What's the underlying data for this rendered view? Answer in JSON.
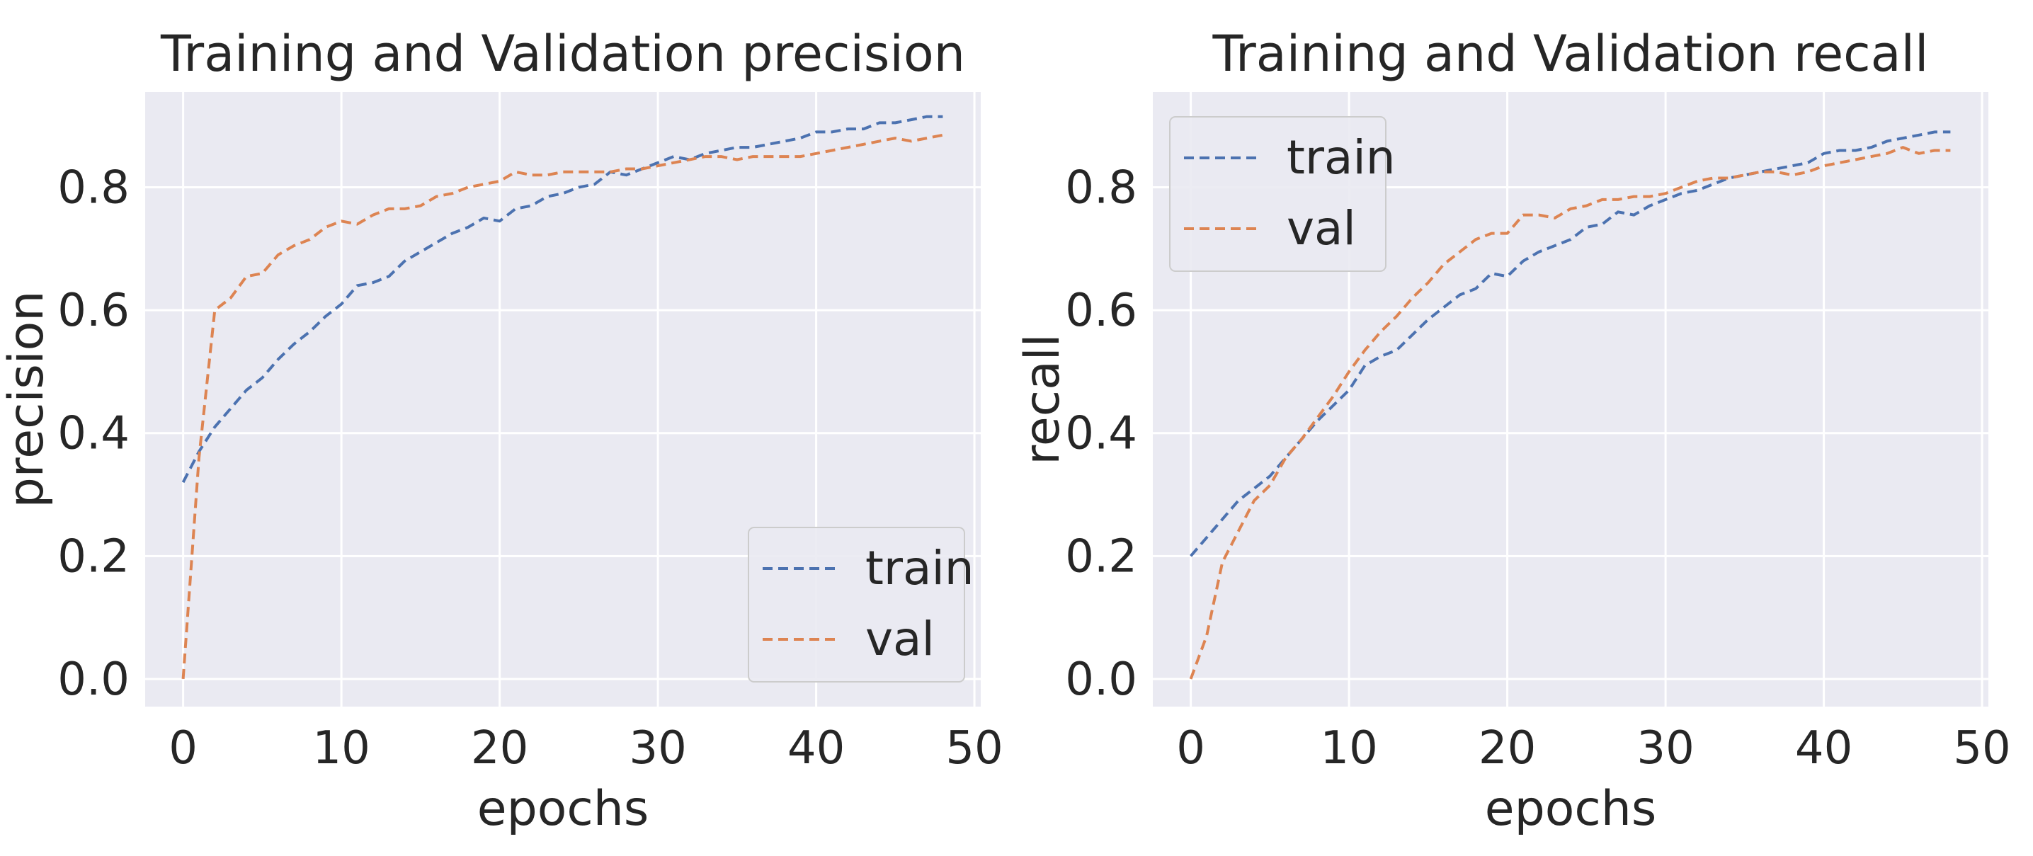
{
  "chart_data": [
    {
      "type": "line",
      "title": "Training and Validation precision",
      "xlabel": "epochs",
      "ylabel": "precision",
      "xlim": [
        -2.4,
        50.4
      ],
      "ylim": [
        -0.045,
        0.955
      ],
      "xticks": [
        "0",
        "10",
        "20",
        "30",
        "40",
        "50"
      ],
      "yticks": [
        "0.0",
        "0.2",
        "0.4",
        "0.6",
        "0.8"
      ],
      "grid": true,
      "legend": "lower right",
      "line_style": "dashed",
      "x": [
        0,
        1,
        2,
        3,
        4,
        5,
        6,
        7,
        8,
        9,
        10,
        11,
        12,
        13,
        14,
        15,
        16,
        17,
        18,
        19,
        20,
        21,
        22,
        23,
        24,
        25,
        26,
        27,
        28,
        29,
        30,
        31,
        32,
        33,
        34,
        35,
        36,
        37,
        38,
        39,
        40,
        41,
        42,
        43,
        44,
        45,
        46,
        47,
        48
      ],
      "series": [
        {
          "name": "train",
          "color": "#4c72b0",
          "values": [
            0.32,
            0.37,
            0.41,
            0.44,
            0.47,
            0.49,
            0.52,
            0.545,
            0.565,
            0.59,
            0.61,
            0.64,
            0.645,
            0.655,
            0.68,
            0.695,
            0.71,
            0.725,
            0.735,
            0.75,
            0.745,
            0.765,
            0.77,
            0.785,
            0.79,
            0.8,
            0.805,
            0.825,
            0.82,
            0.83,
            0.84,
            0.85,
            0.845,
            0.855,
            0.86,
            0.865,
            0.865,
            0.87,
            0.875,
            0.88,
            0.89,
            0.89,
            0.895,
            0.895,
            0.905,
            0.905,
            0.91,
            0.915,
            0.915
          ]
        },
        {
          "name": "val",
          "color": "#dd8452",
          "values": [
            0.0,
            0.36,
            0.6,
            0.62,
            0.655,
            0.66,
            0.69,
            0.705,
            0.715,
            0.735,
            0.745,
            0.74,
            0.755,
            0.765,
            0.765,
            0.77,
            0.785,
            0.79,
            0.8,
            0.805,
            0.81,
            0.825,
            0.82,
            0.82,
            0.825,
            0.825,
            0.825,
            0.825,
            0.83,
            0.83,
            0.835,
            0.84,
            0.845,
            0.85,
            0.85,
            0.845,
            0.85,
            0.85,
            0.85,
            0.85,
            0.855,
            0.86,
            0.865,
            0.87,
            0.875,
            0.88,
            0.875,
            0.88,
            0.885
          ]
        }
      ]
    },
    {
      "type": "line",
      "title": "Training and Validation recall",
      "xlabel": "epochs",
      "ylabel": "recall",
      "xlim": [
        -2.4,
        50.4
      ],
      "ylim": [
        -0.045,
        0.955
      ],
      "xticks": [
        "0",
        "10",
        "20",
        "30",
        "40",
        "50"
      ],
      "yticks": [
        "0.0",
        "0.2",
        "0.4",
        "0.6",
        "0.8"
      ],
      "grid": true,
      "legend": "upper left",
      "line_style": "dashed",
      "x": [
        0,
        1,
        2,
        3,
        4,
        5,
        6,
        7,
        8,
        9,
        10,
        11,
        12,
        13,
        14,
        15,
        16,
        17,
        18,
        19,
        20,
        21,
        22,
        23,
        24,
        25,
        26,
        27,
        28,
        29,
        30,
        31,
        32,
        33,
        34,
        35,
        36,
        37,
        38,
        39,
        40,
        41,
        42,
        43,
        44,
        45,
        46,
        47,
        48
      ],
      "series": [
        {
          "name": "train",
          "color": "#4c72b0",
          "values": [
            0.2,
            0.23,
            0.26,
            0.29,
            0.31,
            0.33,
            0.36,
            0.39,
            0.42,
            0.445,
            0.47,
            0.51,
            0.525,
            0.535,
            0.56,
            0.585,
            0.605,
            0.625,
            0.635,
            0.66,
            0.655,
            0.68,
            0.695,
            0.705,
            0.715,
            0.735,
            0.74,
            0.76,
            0.755,
            0.77,
            0.78,
            0.79,
            0.795,
            0.805,
            0.815,
            0.82,
            0.825,
            0.83,
            0.835,
            0.84,
            0.855,
            0.86,
            0.86,
            0.865,
            0.875,
            0.88,
            0.885,
            0.89,
            0.89
          ]
        },
        {
          "name": "val",
          "color": "#dd8452",
          "values": [
            0.0,
            0.07,
            0.19,
            0.24,
            0.29,
            0.315,
            0.36,
            0.39,
            0.425,
            0.46,
            0.5,
            0.535,
            0.565,
            0.59,
            0.62,
            0.645,
            0.675,
            0.695,
            0.715,
            0.725,
            0.725,
            0.755,
            0.755,
            0.75,
            0.765,
            0.77,
            0.78,
            0.78,
            0.785,
            0.785,
            0.79,
            0.8,
            0.81,
            0.815,
            0.815,
            0.82,
            0.825,
            0.825,
            0.82,
            0.825,
            0.835,
            0.84,
            0.845,
            0.85,
            0.855,
            0.865,
            0.855,
            0.86,
            0.86
          ]
        }
      ]
    }
  ]
}
